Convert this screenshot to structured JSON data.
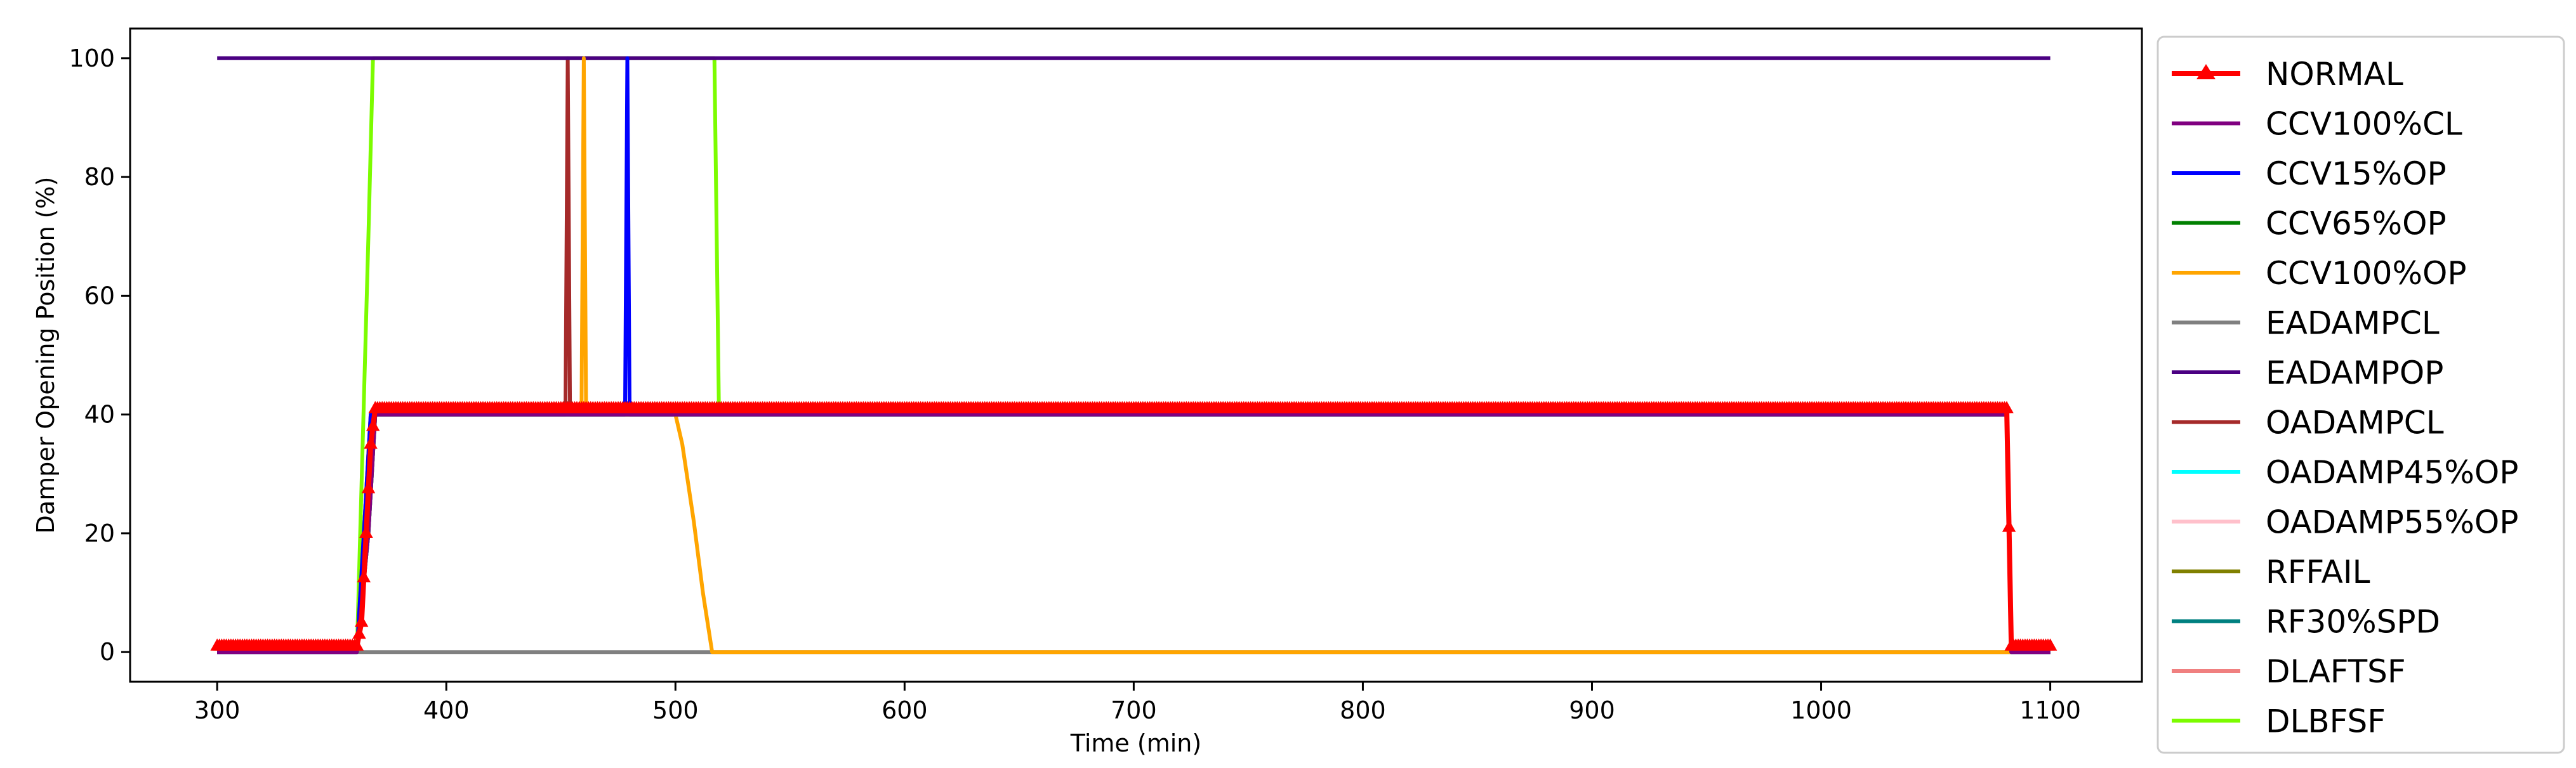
{
  "chart_data": {
    "type": "line",
    "title": "",
    "xlabel": "Time (min)",
    "ylabel": "Damper Opening Position (%)",
    "xlim": [
      262,
      1140
    ],
    "ylim": [
      -5,
      105
    ],
    "xticks": [
      300,
      400,
      500,
      600,
      700,
      800,
      900,
      1000,
      1100
    ],
    "yticks": [
      0,
      20,
      40,
      60,
      80,
      100
    ],
    "grid": false,
    "legend_position": "outside-right",
    "series": [
      {
        "name": "NORMAL",
        "color": "#ff0000",
        "marker": "triangle",
        "x": [
          300,
          361,
          363,
          365,
          367,
          369,
          1081,
          1083,
          1100
        ],
        "y": [
          1,
          1,
          5,
          20,
          35,
          41,
          41,
          1,
          1
        ]
      },
      {
        "name": "CCV100%CL",
        "color": "#800080",
        "x": [
          300,
          361,
          366,
          369,
          1081,
          1083,
          1100
        ],
        "y": [
          0,
          0,
          20,
          40,
          40,
          0,
          0
        ]
      },
      {
        "name": "CCV15%OP",
        "color": "#0000ff",
        "x": [
          300,
          361,
          367,
          369,
          478,
          479,
          480,
          1081,
          1083,
          1100
        ],
        "y": [
          0,
          0,
          40,
          40,
          40,
          100,
          40,
          40,
          0,
          0
        ]
      },
      {
        "name": "CCV65%OP",
        "color": "#008000",
        "x": [
          300,
          361,
          366,
          369,
          1081,
          1083,
          1100
        ],
        "y": [
          0,
          0,
          20,
          40,
          40,
          0,
          0
        ]
      },
      {
        "name": "CCV100%OP",
        "color": "#ffa500",
        "x": [
          300,
          361,
          367,
          369,
          459,
          460,
          461,
          500,
          503,
          508,
          512,
          516,
          1100
        ],
        "y": [
          0,
          0,
          40,
          40,
          40,
          100,
          40,
          40,
          35,
          22,
          10,
          0,
          0
        ]
      },
      {
        "name": "EADAMPCL",
        "color": "#808080",
        "x": [
          300,
          1100
        ],
        "y": [
          0,
          0
        ]
      },
      {
        "name": "EADAMPOP",
        "color": "#4b0082",
        "x": [
          300,
          1100
        ],
        "y": [
          100,
          100
        ]
      },
      {
        "name": "OADAMPCL",
        "color": "#a52a2a",
        "x": [
          300,
          361,
          367,
          369,
          452,
          453,
          454,
          1081,
          1083,
          1100
        ],
        "y": [
          0,
          0,
          40,
          40,
          40,
          100,
          40,
          40,
          0,
          0
        ]
      },
      {
        "name": "OADAMP45%OP",
        "color": "#00ffff",
        "x": [
          300,
          361,
          366,
          369,
          1081,
          1083,
          1100
        ],
        "y": [
          0,
          0,
          20,
          40,
          40,
          0,
          0
        ]
      },
      {
        "name": "OADAMP55%OP",
        "color": "#ffc0cb",
        "x": [
          300,
          361,
          366,
          369,
          1081,
          1083,
          1100
        ],
        "y": [
          0,
          0,
          20,
          40,
          40,
          0,
          0
        ]
      },
      {
        "name": "RFFAIL",
        "color": "#808000",
        "x": [
          300,
          361,
          366,
          369,
          1081,
          1083,
          1100
        ],
        "y": [
          0,
          0,
          20,
          40,
          40,
          0,
          0
        ]
      },
      {
        "name": "RF30%SPD",
        "color": "#008080",
        "x": [
          300,
          361,
          366,
          369,
          1081,
          1083,
          1100
        ],
        "y": [
          0,
          0,
          20,
          40,
          40,
          0,
          0
        ]
      },
      {
        "name": "DLAFTSF",
        "color": "#f08080",
        "x": [
          300,
          361,
          366,
          369,
          1081,
          1083,
          1100
        ],
        "y": [
          0,
          0,
          20,
          40,
          40,
          0,
          0
        ]
      },
      {
        "name": "DLBFSF",
        "color": "#7cfc00",
        "x": [
          300,
          361,
          366,
          368,
          517,
          519,
          1081,
          1083,
          1100
        ],
        "y": [
          0,
          0,
          70,
          100,
          100,
          40,
          40,
          0,
          0
        ]
      }
    ]
  }
}
